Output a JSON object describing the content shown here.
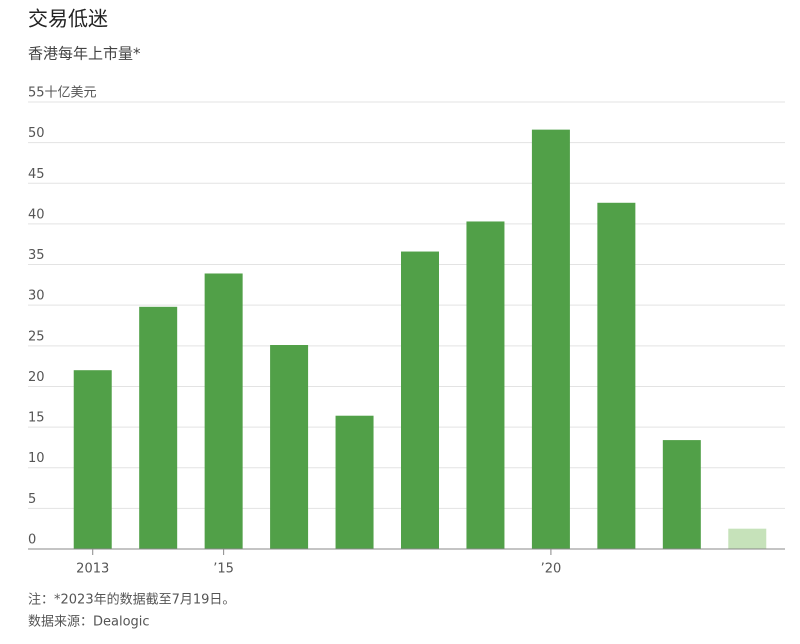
{
  "chart_data": {
    "type": "bar",
    "title": "交易低迷",
    "subtitle": "香港每年上市量*",
    "categories": [
      "2013",
      null,
      "’15",
      null,
      null,
      null,
      null,
      "’20",
      null,
      null,
      null
    ],
    "values": [
      22,
      29.8,
      33.9,
      25.1,
      16.4,
      36.6,
      40.3,
      51.6,
      42.6,
      13.4,
      2.5
    ],
    "colors": [
      "#51a048",
      "#51a048",
      "#51a048",
      "#51a048",
      "#51a048",
      "#51a048",
      "#51a048",
      "#51a048",
      "#51a048",
      "#51a048",
      "#c6e2ba"
    ],
    "ylim": [
      0,
      55
    ],
    "yticks": [
      0,
      5,
      10,
      15,
      20,
      25,
      30,
      35,
      40,
      45,
      50,
      {
        "value": 55,
        "label": "55十亿美元"
      }
    ],
    "grid": true,
    "note": "注：*2023年的数据截至7月19日。",
    "source": "数据来源：Dealogic"
  }
}
